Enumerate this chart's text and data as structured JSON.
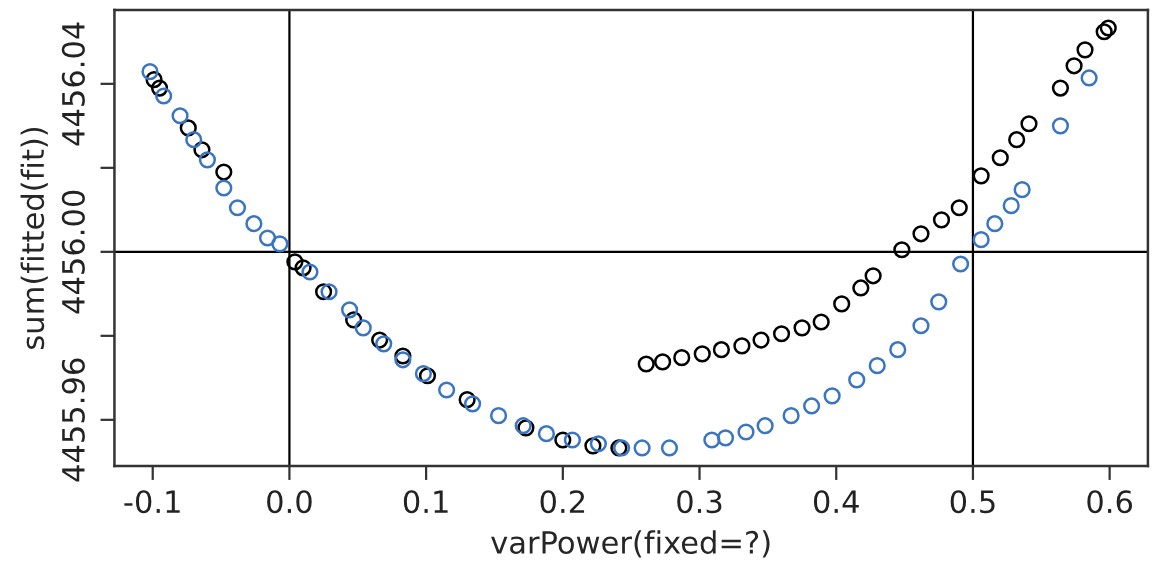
{
  "chart_data": {
    "type": "scatter",
    "xlabel": "varPower(fixed=?)",
    "ylabel": "sum(fitted(fit))",
    "xlim": [
      -0.128,
      0.628
    ],
    "xticks": [
      {
        "value": -0.1,
        "label": "-0.1"
      },
      {
        "value": 0,
        "label": "0.0"
      },
      0.1,
      0.2,
      0.3,
      0.4,
      0.5,
      0.6
    ],
    "ylim": [
      4455.949,
      4456.0576
    ],
    "yticks": [
      {
        "value": 4455.96,
        "label": "4455.96"
      },
      {
        "value": 4455.98,
        "label": null
      },
      {
        "value": 4456,
        "label": "4456.00"
      },
      {
        "value": 4456.02,
        "label": null
      },
      {
        "value": 4456.04,
        "label": "4456.04"
      }
    ],
    "marker": "circle",
    "grid": false,
    "legend": false,
    "ref_lines": [
      {
        "axis": "x",
        "value": 0,
        "color": "#000000"
      },
      {
        "axis": "x",
        "value": 0.5,
        "color": "#000000"
      },
      {
        "axis": "y",
        "value": 4456,
        "color": "#000000"
      }
    ],
    "series": [
      {
        "color": "#000000",
        "x": [
          -0.099,
          -0.095,
          -0.074,
          -0.064,
          -0.048,
          0.004,
          0.01,
          0.025,
          0.047,
          0.066,
          0.083,
          0.101,
          0.13,
          0.173,
          0.2,
          0.222,
          0.241,
          0.261,
          0.273,
          0.287,
          0.302,
          0.316,
          0.331,
          0.345,
          0.36,
          0.375,
          0.389,
          0.404,
          0.418,
          0.427,
          0.448,
          0.462,
          0.477,
          0.49,
          0.506,
          0.52,
          0.532,
          0.541,
          0.564,
          0.574,
          0.582,
          0.596,
          0.599
        ],
        "values": [
          4456.041,
          4456.039,
          4456.0295,
          4456.0243,
          4456.019,
          4455.9976,
          4455.9962,
          4455.9905,
          4455.9838,
          4455.979,
          4455.9752,
          4455.9705,
          4455.9648,
          4455.9581,
          4455.9552,
          4455.9538,
          4455.9533,
          4455.9733,
          4455.9738,
          4455.9748,
          4455.9757,
          4455.9767,
          4455.9776,
          4455.979,
          4455.9805,
          4455.9819,
          4455.9833,
          4455.9876,
          4455.9914,
          4455.9943,
          4456.0005,
          4456.0043,
          4456.0076,
          4456.0105,
          4456.0181,
          4456.0224,
          4456.0267,
          4456.0305,
          4456.039,
          4456.0443,
          4456.0481,
          4456.0524,
          4456.0533
        ]
      },
      {
        "color": "#3a75c4",
        "x": [
          -0.102,
          -0.092,
          -0.08,
          -0.07,
          -0.06,
          -0.048,
          -0.038,
          -0.026,
          -0.016,
          -0.007,
          0.015,
          0.029,
          0.044,
          0.054,
          0.069,
          0.083,
          0.098,
          0.115,
          0.134,
          0.153,
          0.171,
          0.188,
          0.207,
          0.226,
          0.243,
          0.258,
          0.278,
          0.309,
          0.319,
          0.334,
          0.348,
          0.367,
          0.382,
          0.397,
          0.415,
          0.43,
          0.445,
          0.462,
          0.475,
          0.491,
          0.506,
          0.516,
          0.528,
          0.536,
          0.564,
          0.585
        ],
        "values": [
          4456.0429,
          4456.0371,
          4456.0324,
          4456.0267,
          4456.0219,
          4456.0152,
          4456.0105,
          4456.0067,
          4456.0033,
          4456.0019,
          4455.9952,
          4455.9905,
          4455.9862,
          4455.9819,
          4455.9781,
          4455.9743,
          4455.971,
          4455.9671,
          4455.9638,
          4455.961,
          4455.9586,
          4455.9567,
          4455.9552,
          4455.9543,
          4455.9533,
          4455.9533,
          4455.9533,
          4455.9552,
          4455.9557,
          4455.9571,
          4455.9586,
          4455.961,
          4455.9633,
          4455.9657,
          4455.9695,
          4455.9729,
          4455.9767,
          4455.9824,
          4455.9881,
          4455.9971,
          4456.0029,
          4456.0067,
          4456.011,
          4456.0148,
          4456.03,
          4456.0414
        ]
      }
    ]
  }
}
